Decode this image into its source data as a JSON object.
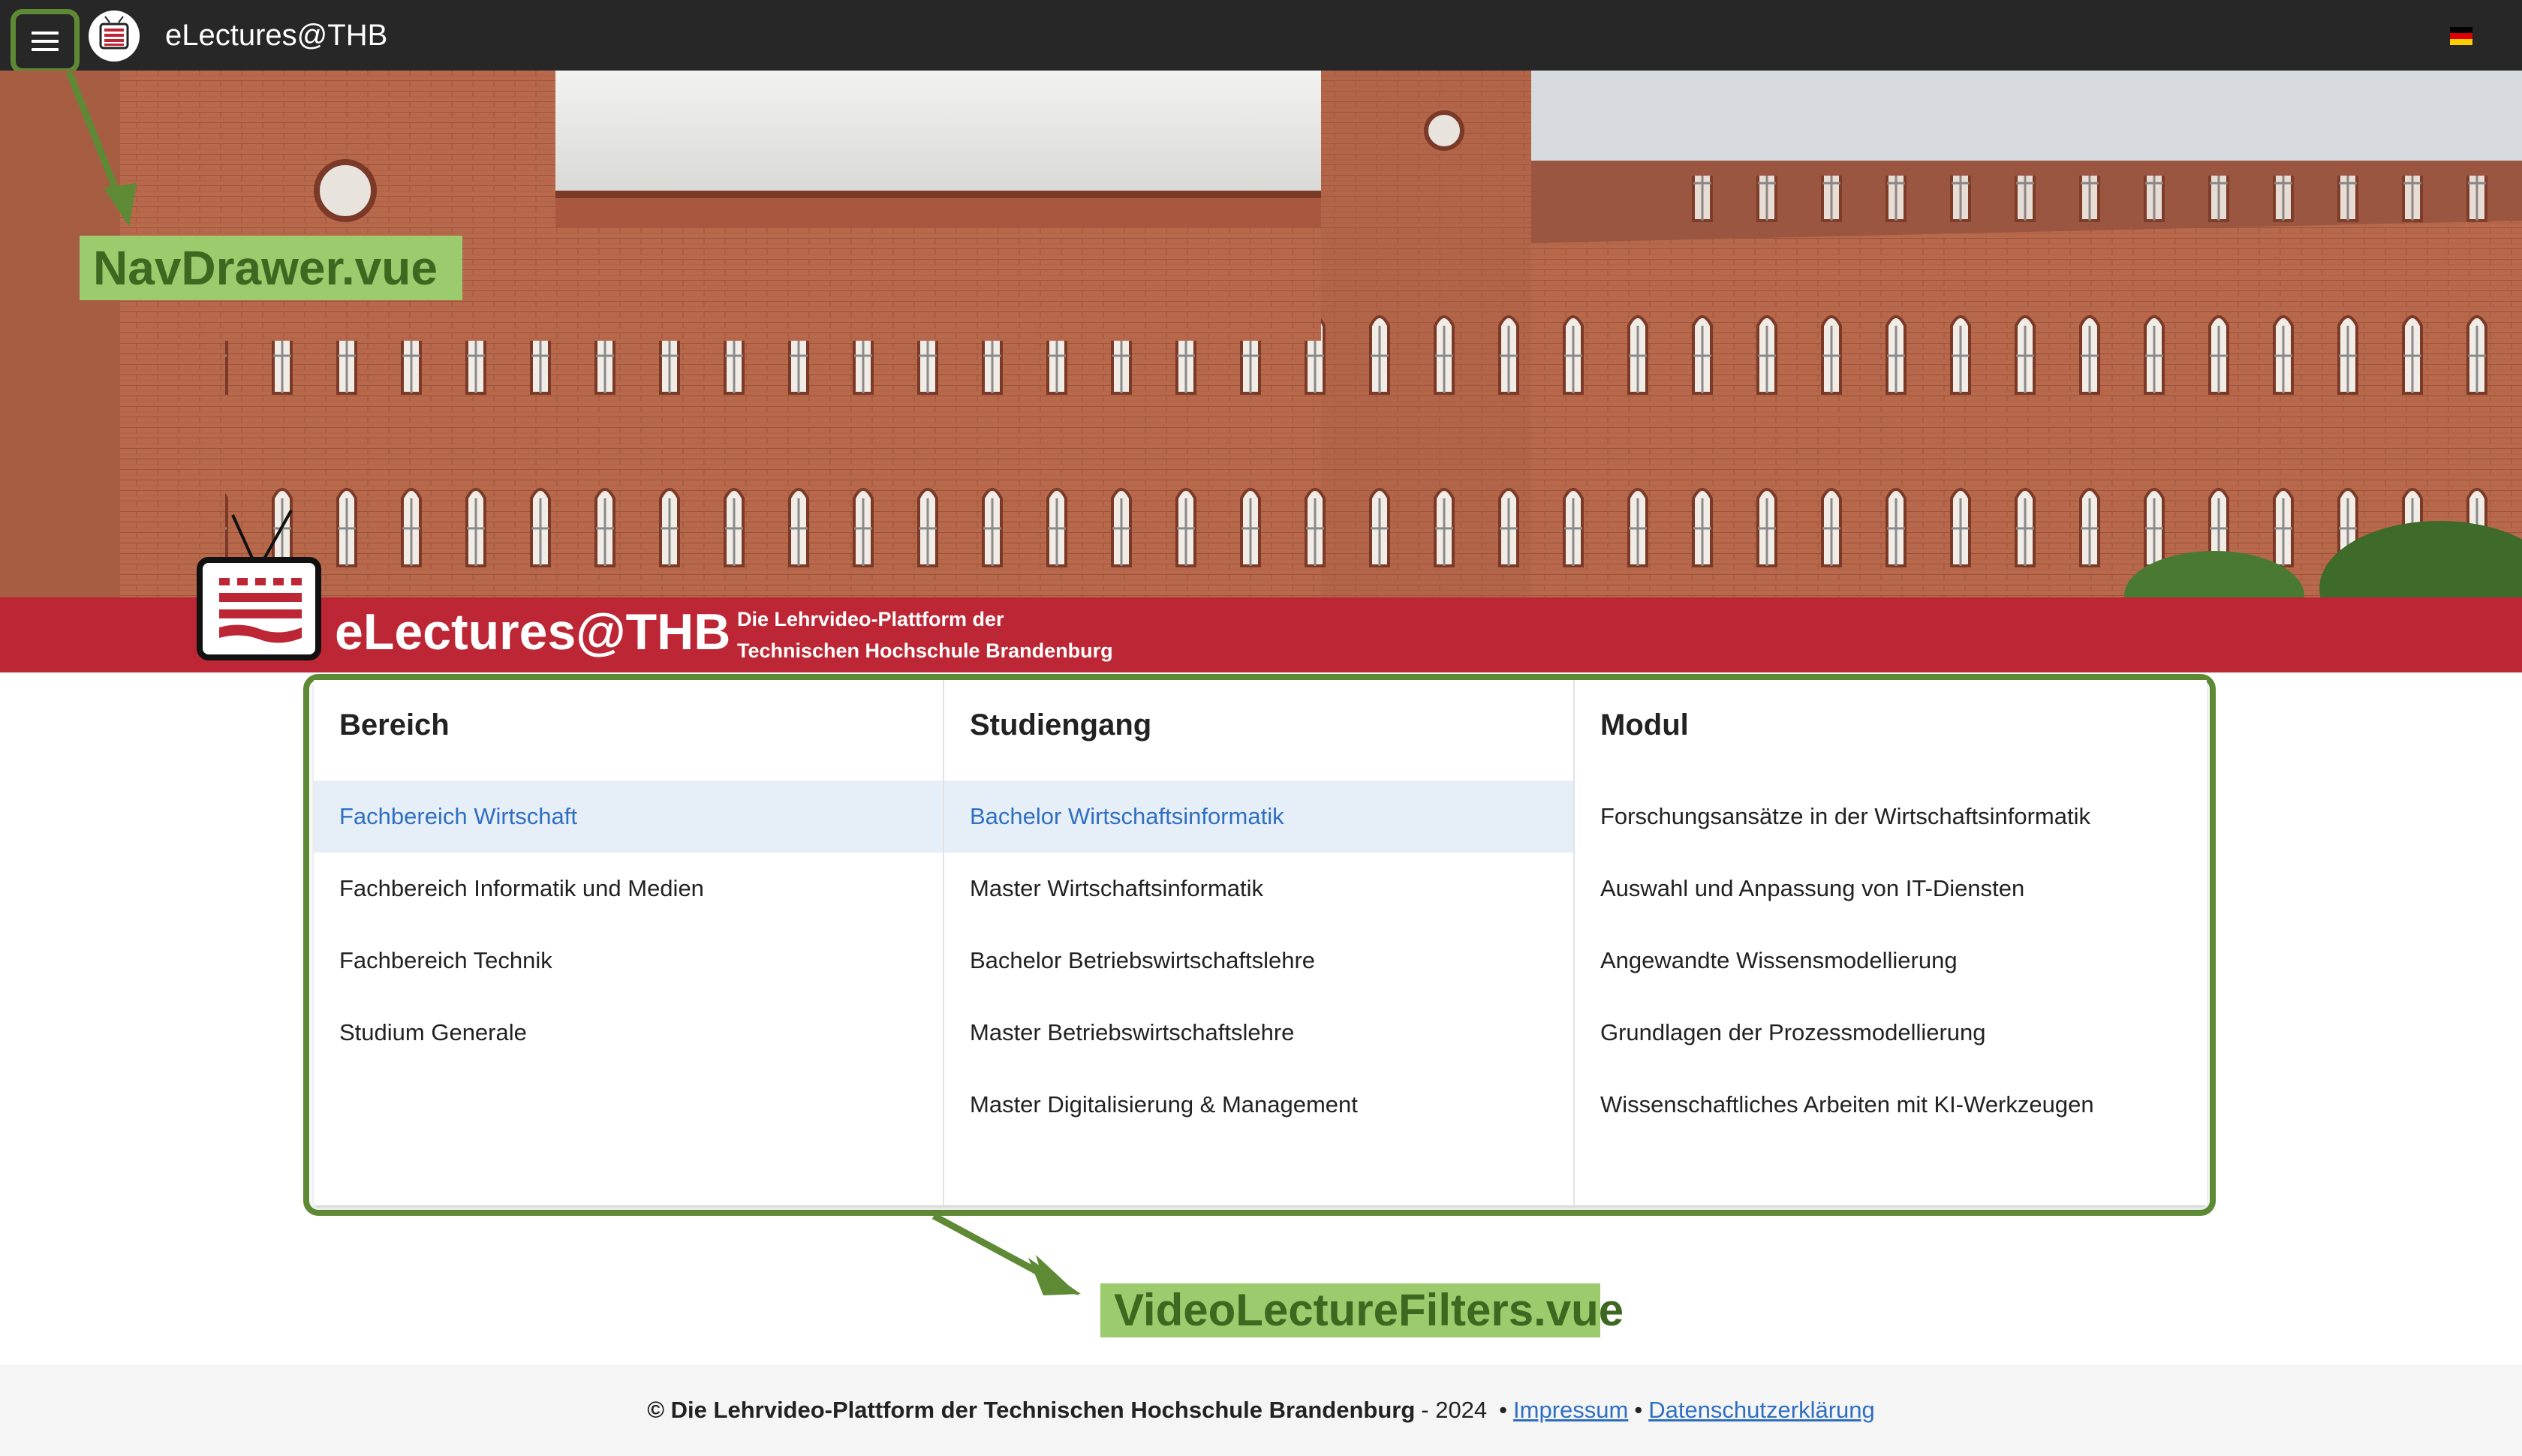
{
  "appbar": {
    "title": "eLectures@THB",
    "menu_icon": "hamburger-menu-icon",
    "logo_icon": "tv-logo-icon",
    "language_flag": "german-flag-icon"
  },
  "banner": {
    "title": "eLectures@THB",
    "subtitle_line1": "Die Lehrvideo-Plattform der",
    "subtitle_line2": "Technischen Hochschule Brandenburg",
    "background_color": "#bd2634"
  },
  "annotations": {
    "nav_drawer": "NavDrawer.vue",
    "video_lecture_filters": "VideoLectureFilters.vue",
    "highlight_color": "#9ccb6e",
    "frame_color": "#5e8a35"
  },
  "filters": {
    "bereich": {
      "header": "Bereich",
      "items": [
        "Fachbereich Wirtschaft",
        "Fachbereich Informatik und Medien",
        "Fachbereich Technik",
        "Studium Generale"
      ],
      "selected": "Fachbereich Wirtschaft"
    },
    "studiengang": {
      "header": "Studiengang",
      "items": [
        "Bachelor Wirtschaftsinformatik",
        "Master Wirtschaftsinformatik",
        "Bachelor Betriebswirtschaftslehre",
        "Master Betriebswirtschaftslehre",
        "Master Digitalisierung & Management"
      ],
      "selected": "Bachelor Wirtschaftsinformatik"
    },
    "modul": {
      "header": "Modul",
      "items": [
        "Forschungsansätze in der Wirtschaftsinformatik",
        "Auswahl und Anpassung von IT-Diensten",
        "Angewandte Wissensmodellierung",
        "Grundlagen der Prozessmodellierung",
        "Wissenschaftliches Arbeiten mit KI-Werkzeugen"
      ]
    },
    "selected_color": "#2f6fc2"
  },
  "footer": {
    "copyright": "© Die Lehrvideo-Plattform der Technischen Hochschule Brandenburg",
    "year": "- 2024",
    "separator": "•",
    "impressum": "Impressum",
    "datenschutz": "Datenschutzerklärung"
  }
}
